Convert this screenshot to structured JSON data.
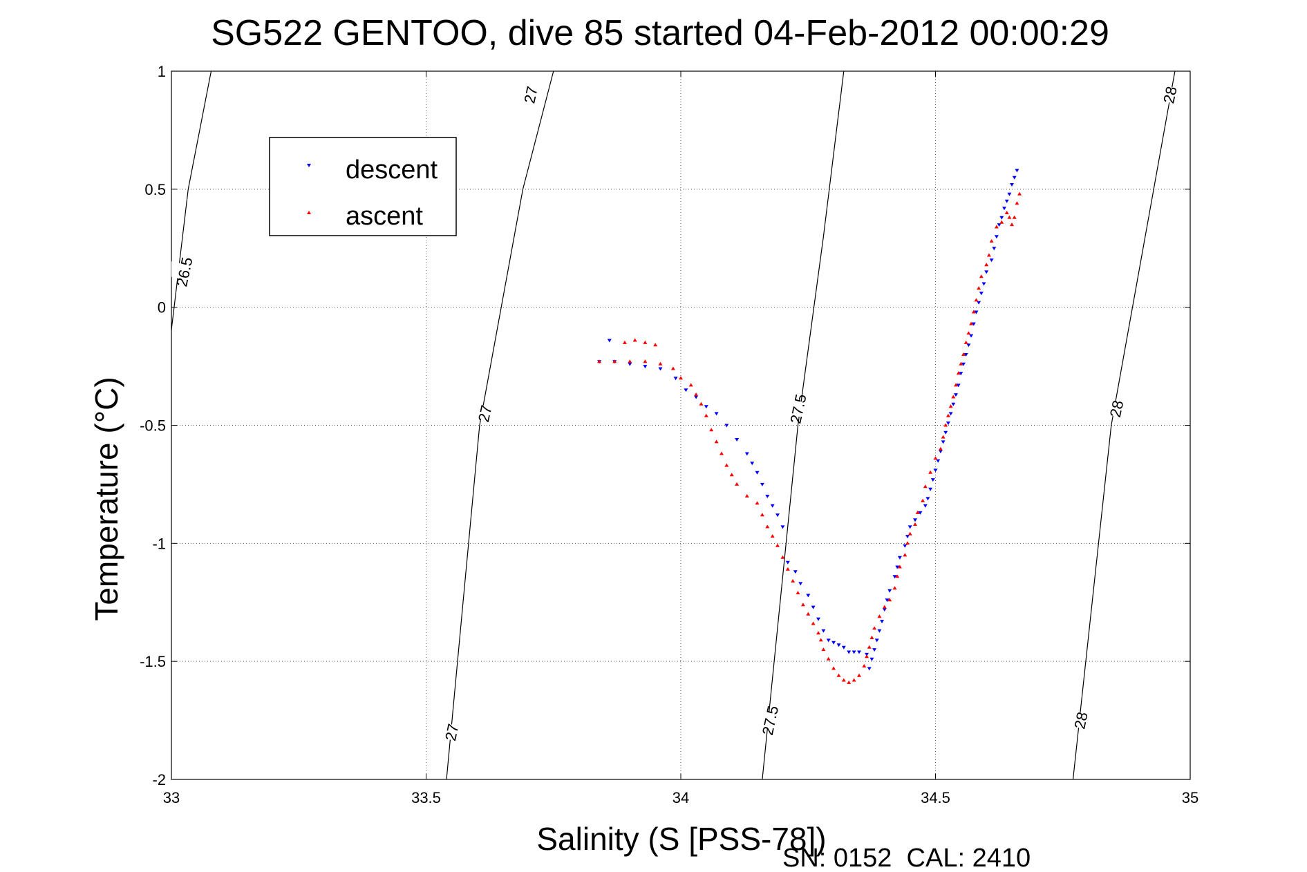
{
  "chart_data": {
    "type": "scatter",
    "title": "SG522 GENTOO, dive 85 started 04-Feb-2012 00:00:29",
    "xlabel": "Salinity (S [PSS-78])",
    "ylabel": "Temperature (°C)",
    "xlim": [
      33,
      35
    ],
    "ylim": [
      -2,
      1
    ],
    "xticks": [
      33,
      33.5,
      34,
      34.5,
      35
    ],
    "xtick_labels": [
      "33",
      "33.5",
      "34",
      "34.5",
      "35"
    ],
    "yticks": [
      -2,
      -1.5,
      -1,
      -0.5,
      0,
      0.5,
      1
    ],
    "ytick_labels": [
      "-2",
      "-1.5",
      "-1",
      "-0.5",
      "0",
      "0.5",
      "1"
    ],
    "grid": true,
    "legend_position": "top-left",
    "footer_text": "SN: 0152  CAL: 2410",
    "density_contours": [
      {
        "label": "26.5",
        "points": [
          [
            32.997,
            -0.15
          ],
          [
            33.033,
            0.5
          ],
          [
            33.078,
            1.0
          ]
        ],
        "label_positions": [
          [
            33.025,
            0.15
          ]
        ]
      },
      {
        "label": "27",
        "points": [
          [
            33.54,
            -2.0
          ],
          [
            33.605,
            -0.5
          ],
          [
            33.69,
            0.5
          ],
          [
            33.75,
            1.0
          ]
        ],
        "label_positions": [
          [
            33.55,
            -1.8
          ],
          [
            33.615,
            -0.45
          ],
          [
            33.705,
            0.9
          ]
        ]
      },
      {
        "label": "27.5",
        "points": [
          [
            34.16,
            -2.0
          ],
          [
            34.23,
            -0.5
          ],
          [
            34.28,
            0.3
          ],
          [
            34.32,
            1.0
          ]
        ],
        "label_positions": [
          [
            34.175,
            -1.75
          ],
          [
            34.23,
            -0.43
          ]
        ]
      },
      {
        "label": "28",
        "points": [
          [
            34.77,
            -2.0
          ],
          [
            34.845,
            -0.5
          ],
          [
            34.97,
            1.0
          ]
        ],
        "label_positions": [
          [
            34.785,
            -1.75
          ],
          [
            34.855,
            -0.43
          ],
          [
            34.96,
            0.9
          ]
        ]
      }
    ],
    "series": [
      {
        "name": "descent",
        "color": "#0000ff",
        "marker": "triangle-down",
        "points": [
          [
            34.66,
            0.58
          ],
          [
            34.655,
            0.55
          ],
          [
            34.65,
            0.52
          ],
          [
            34.645,
            0.48
          ],
          [
            34.64,
            0.45
          ],
          [
            34.635,
            0.42
          ],
          [
            34.63,
            0.38
          ],
          [
            34.625,
            0.35
          ],
          [
            34.62,
            0.3
          ],
          [
            34.615,
            0.25
          ],
          [
            34.61,
            0.2
          ],
          [
            34.6,
            0.15
          ],
          [
            34.595,
            0.1
          ],
          [
            34.59,
            0.06
          ],
          [
            34.585,
            0.02
          ],
          [
            34.58,
            -0.02
          ],
          [
            34.575,
            -0.07
          ],
          [
            34.57,
            -0.12
          ],
          [
            34.565,
            -0.16
          ],
          [
            34.56,
            -0.2
          ],
          [
            34.555,
            -0.24
          ],
          [
            34.55,
            -0.28
          ],
          [
            34.545,
            -0.33
          ],
          [
            34.54,
            -0.37
          ],
          [
            34.535,
            -0.41
          ],
          [
            34.53,
            -0.45
          ],
          [
            34.525,
            -0.49
          ],
          [
            34.52,
            -0.53
          ],
          [
            34.515,
            -0.57
          ],
          [
            34.51,
            -0.61
          ],
          [
            34.505,
            -0.65
          ],
          [
            34.5,
            -0.69
          ],
          [
            34.495,
            -0.73
          ],
          [
            34.49,
            -0.77
          ],
          [
            34.485,
            -0.81
          ],
          [
            34.48,
            -0.84
          ],
          [
            34.47,
            -0.87
          ],
          [
            34.46,
            -0.9
          ],
          [
            34.45,
            -0.93
          ],
          [
            34.445,
            -0.97
          ],
          [
            34.44,
            -1.01
          ],
          [
            34.43,
            -1.06
          ],
          [
            34.425,
            -1.1
          ],
          [
            34.42,
            -1.14
          ],
          [
            34.41,
            -1.2
          ],
          [
            34.405,
            -1.24
          ],
          [
            34.4,
            -1.28
          ],
          [
            34.395,
            -1.33
          ],
          [
            34.39,
            -1.37
          ],
          [
            34.385,
            -1.41
          ],
          [
            34.38,
            -1.45
          ],
          [
            34.375,
            -1.49
          ],
          [
            34.37,
            -1.53
          ],
          [
            34.365,
            -1.47
          ],
          [
            34.35,
            -1.46
          ],
          [
            34.34,
            -1.46
          ],
          [
            34.33,
            -1.46
          ],
          [
            34.32,
            -1.44
          ],
          [
            34.31,
            -1.43
          ],
          [
            34.3,
            -1.42
          ],
          [
            34.29,
            -1.41
          ],
          [
            34.28,
            -1.37
          ],
          [
            34.27,
            -1.32
          ],
          [
            34.26,
            -1.27
          ],
          [
            34.25,
            -1.22
          ],
          [
            34.235,
            -1.17
          ],
          [
            34.225,
            -1.12
          ],
          [
            34.21,
            -1.08
          ],
          [
            34.2,
            -0.93
          ],
          [
            34.19,
            -0.88
          ],
          [
            34.18,
            -0.84
          ],
          [
            34.17,
            -0.8
          ],
          [
            34.16,
            -0.75
          ],
          [
            34.15,
            -0.7
          ],
          [
            34.14,
            -0.66
          ],
          [
            34.13,
            -0.62
          ],
          [
            34.11,
            -0.56
          ],
          [
            34.09,
            -0.5
          ],
          [
            34.07,
            -0.45
          ],
          [
            34.05,
            -0.42
          ],
          [
            34.03,
            -0.38
          ],
          [
            34.01,
            -0.35
          ],
          [
            33.99,
            -0.3
          ],
          [
            33.96,
            -0.26
          ],
          [
            33.93,
            -0.25
          ],
          [
            33.9,
            -0.24
          ],
          [
            33.87,
            -0.23
          ],
          [
            33.84,
            -0.23
          ],
          [
            33.86,
            -0.14
          ]
        ]
      },
      {
        "name": "ascent",
        "color": "#ff0000",
        "marker": "triangle-up",
        "points": [
          [
            34.665,
            0.48
          ],
          [
            34.66,
            0.44
          ],
          [
            34.655,
            0.38
          ],
          [
            34.65,
            0.35
          ],
          [
            34.645,
            0.38
          ],
          [
            34.64,
            0.4
          ],
          [
            34.63,
            0.36
          ],
          [
            34.62,
            0.34
          ],
          [
            34.61,
            0.28
          ],
          [
            34.605,
            0.22
          ],
          [
            34.6,
            0.18
          ],
          [
            34.59,
            0.13
          ],
          [
            34.585,
            0.08
          ],
          [
            34.58,
            0.03
          ],
          [
            34.575,
            -0.02
          ],
          [
            34.57,
            -0.07
          ],
          [
            34.565,
            -0.11
          ],
          [
            34.56,
            -0.15
          ],
          [
            34.555,
            -0.2
          ],
          [
            34.55,
            -0.24
          ],
          [
            34.545,
            -0.28
          ],
          [
            34.54,
            -0.33
          ],
          [
            34.535,
            -0.38
          ],
          [
            34.53,
            -0.42
          ],
          [
            34.525,
            -0.46
          ],
          [
            34.52,
            -0.5
          ],
          [
            34.515,
            -0.55
          ],
          [
            34.51,
            -0.6
          ],
          [
            34.5,
            -0.64
          ],
          [
            34.49,
            -0.7
          ],
          [
            34.48,
            -0.76
          ],
          [
            34.475,
            -0.82
          ],
          [
            34.465,
            -0.87
          ],
          [
            34.46,
            -0.92
          ],
          [
            34.45,
            -0.96
          ],
          [
            34.445,
            -1.0
          ],
          [
            34.44,
            -1.05
          ],
          [
            34.43,
            -1.1
          ],
          [
            34.425,
            -1.14
          ],
          [
            34.42,
            -1.19
          ],
          [
            34.41,
            -1.24
          ],
          [
            34.4,
            -1.27
          ],
          [
            34.39,
            -1.31
          ],
          [
            34.38,
            -1.36
          ],
          [
            34.375,
            -1.4
          ],
          [
            34.37,
            -1.44
          ],
          [
            34.365,
            -1.48
          ],
          [
            34.36,
            -1.52
          ],
          [
            34.35,
            -1.56
          ],
          [
            34.34,
            -1.58
          ],
          [
            34.33,
            -1.59
          ],
          [
            34.32,
            -1.58
          ],
          [
            34.31,
            -1.56
          ],
          [
            34.3,
            -1.53
          ],
          [
            34.29,
            -1.49
          ],
          [
            34.28,
            -1.45
          ],
          [
            34.275,
            -1.41
          ],
          [
            34.27,
            -1.38
          ],
          [
            34.26,
            -1.34
          ],
          [
            34.25,
            -1.3
          ],
          [
            34.24,
            -1.26
          ],
          [
            34.23,
            -1.21
          ],
          [
            34.22,
            -1.16
          ],
          [
            34.21,
            -1.11
          ],
          [
            34.2,
            -1.06
          ],
          [
            34.19,
            -1.01
          ],
          [
            34.18,
            -0.97
          ],
          [
            34.17,
            -0.93
          ],
          [
            34.16,
            -0.88
          ],
          [
            34.15,
            -0.83
          ],
          [
            34.13,
            -0.8
          ],
          [
            34.11,
            -0.75
          ],
          [
            34.1,
            -0.71
          ],
          [
            34.09,
            -0.67
          ],
          [
            34.08,
            -0.62
          ],
          [
            34.07,
            -0.57
          ],
          [
            34.06,
            -0.52
          ],
          [
            34.05,
            -0.46
          ],
          [
            34.04,
            -0.41
          ],
          [
            34.03,
            -0.37
          ],
          [
            34.02,
            -0.33
          ],
          [
            34.0,
            -0.3
          ],
          [
            33.985,
            -0.26
          ],
          [
            33.96,
            -0.24
          ],
          [
            33.93,
            -0.23
          ],
          [
            33.9,
            -0.23
          ],
          [
            33.87,
            -0.23
          ],
          [
            33.84,
            -0.23
          ],
          [
            33.89,
            -0.15
          ],
          [
            33.91,
            -0.14
          ],
          [
            33.93,
            -0.15
          ],
          [
            33.95,
            -0.16
          ]
        ]
      }
    ]
  }
}
